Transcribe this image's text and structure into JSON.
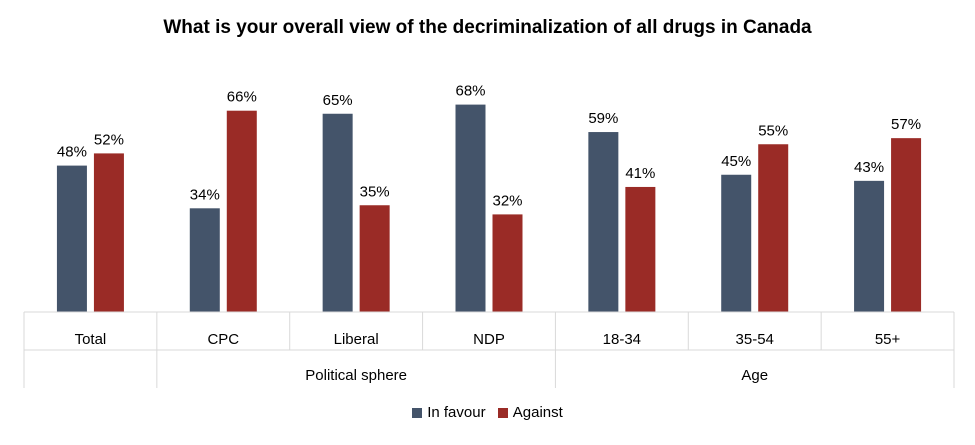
{
  "chart_data": {
    "type": "bar",
    "title": "What is your overall view of the decriminalization of all drugs in Canada",
    "categories": [
      "Total",
      "CPC",
      "Liberal",
      "NDP",
      "18-34",
      "35-54",
      "55+"
    ],
    "groups": [
      {
        "label": "",
        "categories": [
          "Total"
        ]
      },
      {
        "label": "Political sphere",
        "categories": [
          "CPC",
          "Liberal",
          "NDP"
        ]
      },
      {
        "label": "Age",
        "categories": [
          "18-34",
          "35-54",
          "55+"
        ]
      }
    ],
    "series": [
      {
        "name": "In favour",
        "values": [
          48,
          34,
          65,
          68,
          59,
          45,
          43
        ],
        "labels": [
          "48%",
          "34%",
          "65%",
          "68%",
          "59%",
          "45%",
          "43%"
        ],
        "color": "#44546A"
      },
      {
        "name": "Against",
        "values": [
          52,
          66,
          35,
          32,
          41,
          55,
          57
        ],
        "labels": [
          "52%",
          "66%",
          "35%",
          "32%",
          "41%",
          "55%",
          "57%"
        ],
        "color": "#9A2B26"
      }
    ],
    "ylim": [
      0,
      100
    ],
    "legend_position": "bottom"
  }
}
